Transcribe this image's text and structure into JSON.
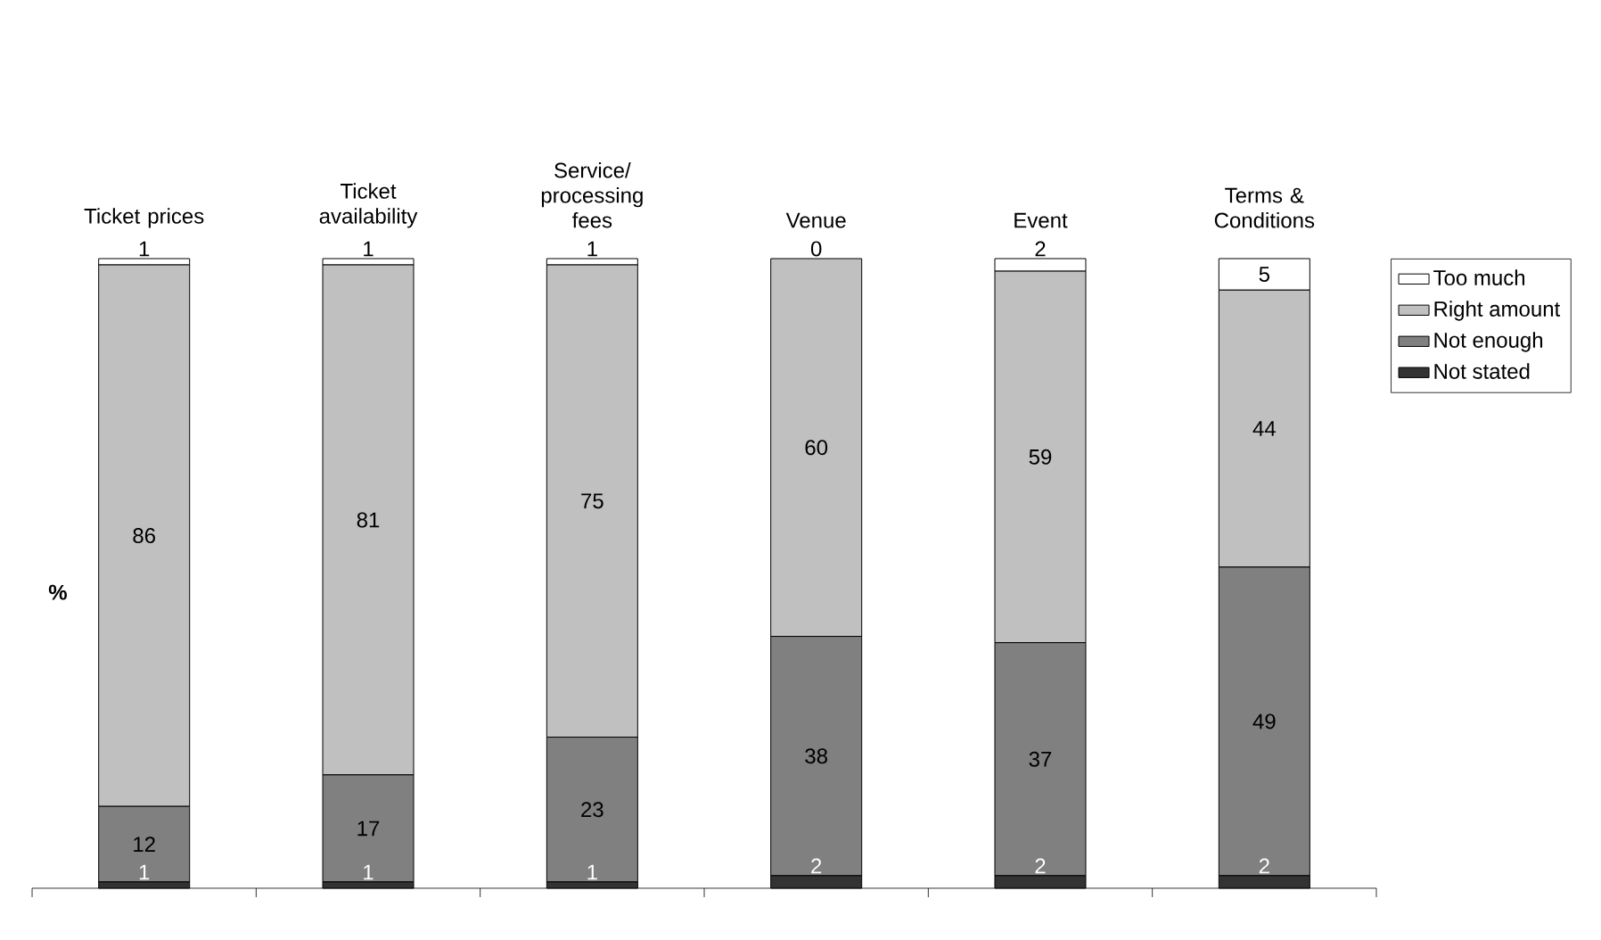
{
  "chart_data": {
    "type": "bar",
    "stacked": true,
    "ylabel": "%",
    "categories": [
      "Ticket prices",
      "Ticket availability",
      "Service/ processing fees",
      "Venue",
      "Event",
      "Terms & Conditions"
    ],
    "series": [
      {
        "name": "Not stated",
        "color": "#333333",
        "values": [
          1,
          1,
          1,
          2,
          2,
          2
        ]
      },
      {
        "name": "Not enough",
        "color": "#808080",
        "values": [
          12,
          17,
          23,
          38,
          37,
          49
        ]
      },
      {
        "name": "Right amount",
        "color": "#c0c0c0",
        "values": [
          86,
          81,
          75,
          60,
          59,
          44
        ]
      },
      {
        "name": "Too much",
        "color": "#ffffff",
        "values": [
          1,
          1,
          1,
          0,
          2,
          5
        ]
      }
    ],
    "data_labels": true,
    "legend": "top right"
  }
}
